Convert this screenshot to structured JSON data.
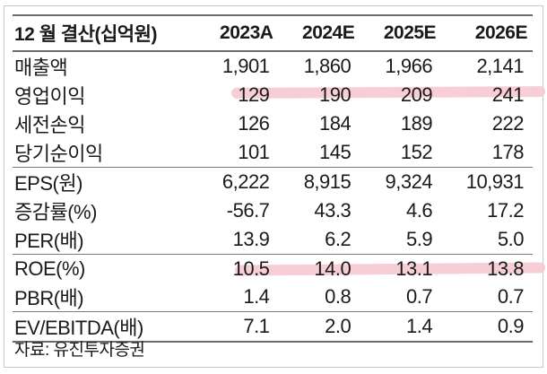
{
  "table": {
    "header": [
      "12 월 결산(십억원)",
      "2023A",
      "2024E",
      "2025E",
      "2026E"
    ],
    "rows": [
      {
        "label": "매출액",
        "values": [
          "1,901",
          "1,860",
          "1,966",
          "2,141"
        ]
      },
      {
        "label": "영업이익",
        "values": [
          "129",
          "190",
          "209",
          "241"
        ]
      },
      {
        "label": "세전손익",
        "values": [
          "126",
          "184",
          "189",
          "222"
        ]
      },
      {
        "label": "당기순이익",
        "values": [
          "101",
          "145",
          "152",
          "178"
        ]
      },
      {
        "label": "EPS(원)",
        "values": [
          "6,222",
          "8,915",
          "9,324",
          "10,931"
        ]
      },
      {
        "label": "증감률(%)",
        "values": [
          "-56.7",
          "43.3",
          "4.6",
          "17.2"
        ]
      },
      {
        "label": "PER(배)",
        "values": [
          "13.9",
          "6.2",
          "5.9",
          "5.0"
        ]
      },
      {
        "label": "ROE(%)",
        "values": [
          "10.5",
          "14.0",
          "13.1",
          "13.8"
        ]
      },
      {
        "label": "PBR(배)",
        "values": [
          "1.4",
          "0.8",
          "0.7",
          "0.7"
        ]
      },
      {
        "label": "EV/EBITDA(배)",
        "values": [
          "7.1",
          "2.0",
          "1.4",
          "0.9"
        ]
      }
    ]
  },
  "source": "자료: 유진투자증권",
  "highlight_color": "#f6c5cf"
}
